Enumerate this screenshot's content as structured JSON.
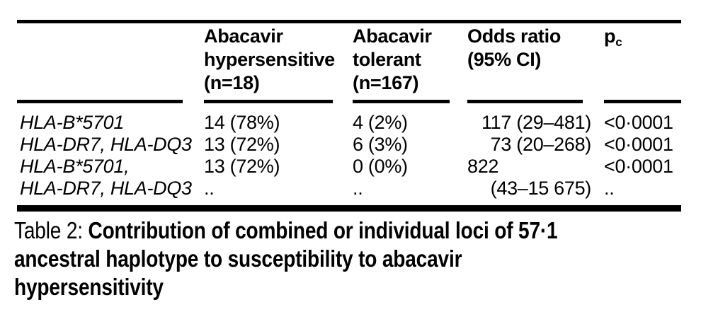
{
  "table": {
    "header": {
      "col_hypersensitive": {
        "line1": "Abacavir",
        "line2": "hypersensitive",
        "line3": "(n=18)"
      },
      "col_tolerant": {
        "line1": "Abacavir",
        "line2": "tolerant",
        "line3": "(n=167)"
      },
      "col_odds": {
        "line1": "Odds ratio",
        "line2": "(95% CI)"
      },
      "col_p": {
        "symbol": "p",
        "subscript": "c"
      }
    },
    "rows": [
      {
        "label": "HLA-B*5701",
        "hypersensitive": "14 (78%)",
        "tolerant": "4 (2%)",
        "odds": "117 (29–481)",
        "p": "<0·0001"
      },
      {
        "label": "HLA-DR7, HLA-DQ3",
        "hypersensitive": "13 (72%)",
        "tolerant": "6 (3%)",
        "odds": "73 (20–268)",
        "p": "<0·0001"
      },
      {
        "label": "HLA-B*5701,",
        "hypersensitive": "13 (72%)",
        "tolerant": "0 (0%)",
        "odds": "822",
        "p": "<0·0001"
      },
      {
        "label": "HLA-DR7, HLA-DQ3",
        "hypersensitive": "..",
        "tolerant": "..",
        "odds": "(43–15 675)",
        "p": ".."
      }
    ]
  },
  "caption": {
    "prefix": "Table 2: ",
    "line1_bold": "Contribution of combined or individual loci of 57·1",
    "line2": "ancestral haplotype to susceptibility to abacavir",
    "line3": "hypersensitivity"
  },
  "colors": {
    "text": "#000000",
    "rule": "#000000",
    "background": "#ffffff"
  }
}
